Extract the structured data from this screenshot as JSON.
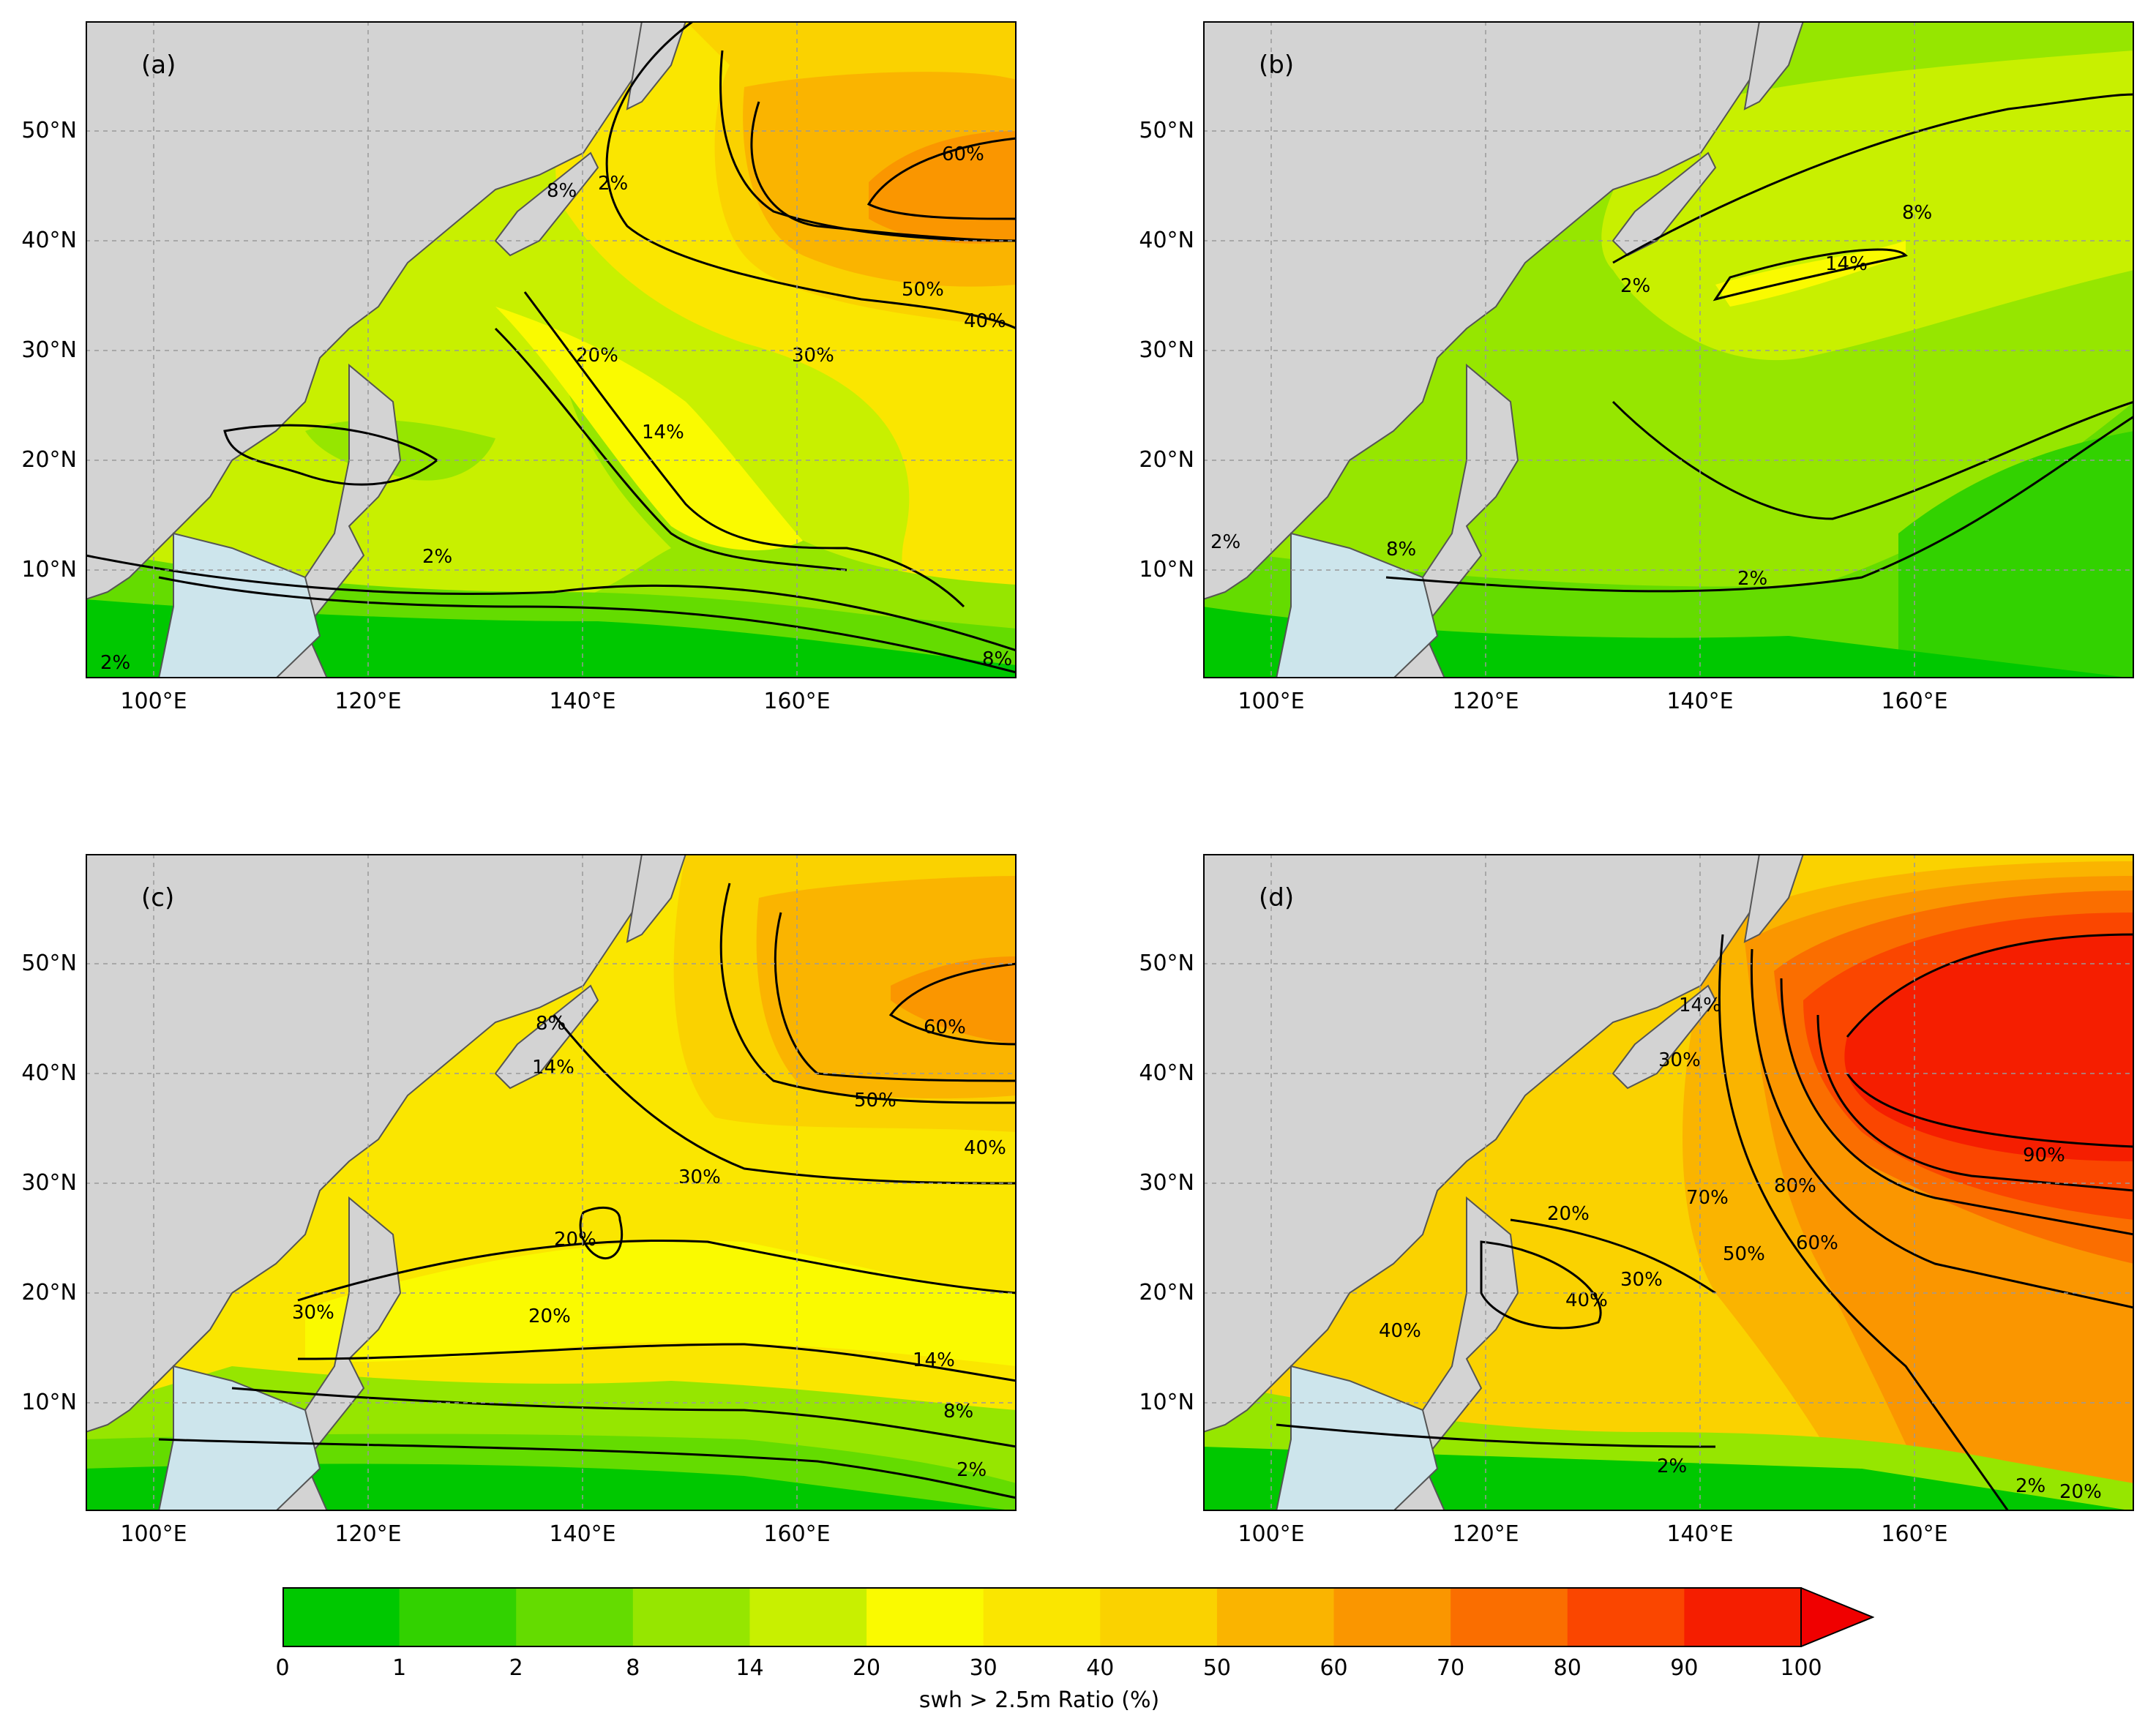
{
  "panels": [
    {
      "label": "(a)",
      "contour_labels": [
        "60%",
        "50%",
        "40%",
        "30%",
        "20%",
        "14%",
        "8%",
        "2%",
        "2%",
        "8%",
        "2%"
      ]
    },
    {
      "label": "(b)",
      "contour_labels": [
        "8%",
        "14%",
        "2%",
        "8%",
        "2%",
        "2%"
      ]
    },
    {
      "label": "(c)",
      "contour_labels": [
        "60%",
        "50%",
        "40%",
        "30%",
        "20%",
        "20%",
        "14%",
        "8%",
        "2%",
        "30%",
        "14%",
        "8%"
      ]
    },
    {
      "label": "(d)",
      "contour_labels": [
        "90%",
        "80%",
        "70%",
        "60%",
        "50%",
        "40%",
        "30%",
        "20%",
        "20%",
        "30%",
        "40%",
        "2%",
        "2%",
        "14%"
      ]
    }
  ],
  "axes": {
    "y_ticks": [
      "50°N",
      "40°N",
      "30°N",
      "20°N",
      "10°N"
    ],
    "x_ticks": [
      "100°E",
      "120°E",
      "140°E",
      "160°E"
    ]
  },
  "colorbar": {
    "label": "swh > 2.5m Ratio (%)",
    "ticks": [
      "0",
      "1",
      "2",
      "8",
      "14",
      "20",
      "30",
      "40",
      "50",
      "60",
      "70",
      "80",
      "90",
      "100"
    ],
    "colors": [
      "#00c800",
      "#32d200",
      "#64dc00",
      "#96e600",
      "#c8f000",
      "#fafa00",
      "#fae600",
      "#fad200",
      "#fab400",
      "#fa9600",
      "#fa6e00",
      "#fa4600",
      "#f51e00",
      "#f00000"
    ],
    "extend_color": "#f00000"
  },
  "map_colors": {
    "land": "#d3d3d3",
    "inland": "#cde5ec"
  }
}
